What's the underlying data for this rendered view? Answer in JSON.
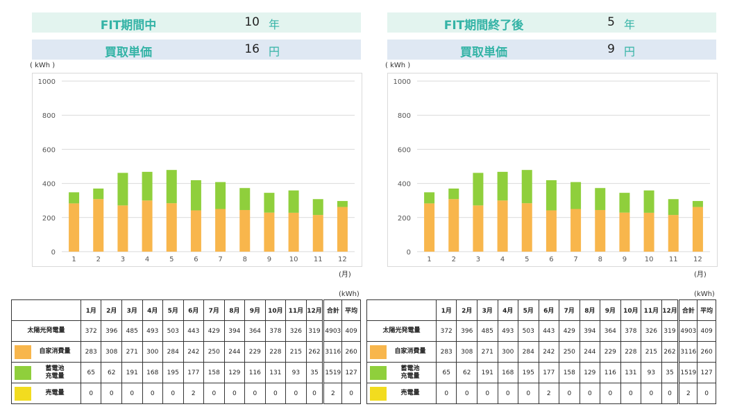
{
  "panels": [
    {
      "period_label": "FIT期間中",
      "period_value": "10",
      "period_unit": "年",
      "price_label": "買取単価",
      "price_value": "16",
      "price_unit": "円",
      "y_unit": "( kWh )",
      "x_unit": "(月)",
      "table_unit": "(kWh)"
    },
    {
      "period_label": "FIT期間終了後",
      "period_value": "5",
      "period_unit": "年",
      "price_label": "買取単価",
      "price_value": "9",
      "price_unit": "円",
      "y_unit": "( kWh )",
      "x_unit": "(月)",
      "table_unit": "(kWh)"
    }
  ],
  "table": {
    "headers": [
      "1月",
      "2月",
      "3月",
      "4月",
      "5月",
      "6月",
      "7月",
      "8月",
      "9月",
      "10月",
      "11月",
      "12月",
      "合計",
      "平均"
    ],
    "rows": [
      {
        "name": "太陽光発電量",
        "swatch": "",
        "values": [
          "372",
          "396",
          "485",
          "493",
          "503",
          "443",
          "429",
          "394",
          "364",
          "378",
          "326",
          "319",
          "4903",
          "409"
        ]
      },
      {
        "name": "自家消費量",
        "swatch": "#f8b64c",
        "values": [
          "283",
          "308",
          "271",
          "300",
          "284",
          "242",
          "250",
          "244",
          "229",
          "228",
          "215",
          "262",
          "3116",
          "260"
        ]
      },
      {
        "name": "蓄電池\n充電量",
        "swatch": "#8fcf3c",
        "values": [
          "65",
          "62",
          "191",
          "168",
          "195",
          "177",
          "158",
          "129",
          "116",
          "131",
          "93",
          "35",
          "1519",
          "127"
        ]
      },
      {
        "name": "売電量",
        "swatch": "#f2dc1f",
        "values": [
          "0",
          "0",
          "0",
          "0",
          "0",
          "2",
          "0",
          "0",
          "0",
          "0",
          "0",
          "0",
          "2",
          "0"
        ]
      }
    ]
  },
  "colors": {
    "self_consumption": "#f8b64c",
    "battery": "#8fcf3c",
    "sell": "#f2dc1f",
    "grid": "#d9d9d9"
  },
  "chart_data": [
    {
      "type": "bar",
      "stacked": true,
      "categories": [
        "1",
        "2",
        "3",
        "4",
        "5",
        "6",
        "7",
        "8",
        "9",
        "10",
        "11",
        "12"
      ],
      "series": [
        {
          "values": [
            283,
            308,
            271,
            300,
            284,
            242,
            250,
            244,
            229,
            228,
            215,
            262
          ],
          "color": "#f8b64c"
        },
        {
          "values": [
            65,
            62,
            191,
            168,
            195,
            177,
            158,
            129,
            116,
            131,
            93,
            35
          ],
          "color": "#8fcf3c"
        }
      ],
      "ylim": [
        0,
        1000
      ],
      "yticks": [
        0,
        200,
        400,
        600,
        800,
        1000
      ],
      "grid": true
    },
    {
      "type": "bar",
      "stacked": true,
      "categories": [
        "1",
        "2",
        "3",
        "4",
        "5",
        "6",
        "7",
        "8",
        "9",
        "10",
        "11",
        "12"
      ],
      "series": [
        {
          "values": [
            283,
            308,
            271,
            300,
            284,
            242,
            250,
            244,
            229,
            228,
            215,
            262
          ],
          "color": "#f8b64c"
        },
        {
          "values": [
            65,
            62,
            191,
            168,
            195,
            177,
            158,
            129,
            116,
            131,
            93,
            35
          ],
          "color": "#8fcf3c"
        }
      ],
      "ylim": [
        0,
        1000
      ],
      "yticks": [
        0,
        200,
        400,
        600,
        800,
        1000
      ],
      "grid": true
    }
  ]
}
